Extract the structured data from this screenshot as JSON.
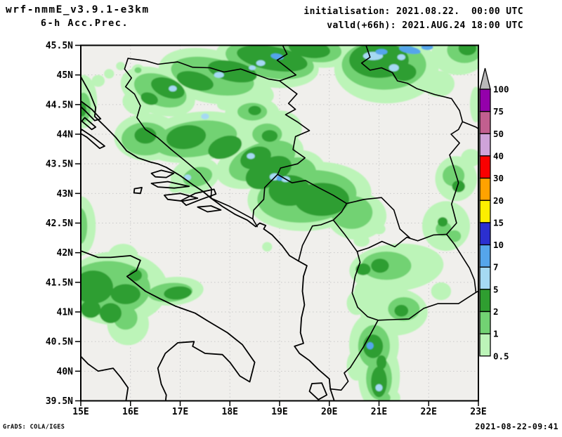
{
  "header": {
    "model": "wrf-nmmE_v3.9.1-e3km",
    "product": "6-h Acc.Prec.",
    "initialisation": "initialisation: 2021.08.22.  00:00 UTC",
    "valid": "valld(+66h): 2021.AUG.24 18:00 UTC"
  },
  "footer": {
    "credit": "GrADS: COLA/IGES",
    "timestamp": "2021-08-22-09:41"
  },
  "map": {
    "background": "#f0efec",
    "grid_color": "#c9c9c9",
    "lat_ticks": [
      {
        "label": "45.5N",
        "value": 45.5
      },
      {
        "label": "45N",
        "value": 45
      },
      {
        "label": "44.5N",
        "value": 44.5
      },
      {
        "label": "44N",
        "value": 44
      },
      {
        "label": "43.5N",
        "value": 43.5
      },
      {
        "label": "43N",
        "value": 43
      },
      {
        "label": "42.5N",
        "value": 42.5
      },
      {
        "label": "42N",
        "value": 42
      },
      {
        "label": "41.5N",
        "value": 41.5
      },
      {
        "label": "41N",
        "value": 41
      },
      {
        "label": "40.5N",
        "value": 40.5
      },
      {
        "label": "40N",
        "value": 40
      },
      {
        "label": "39.5N",
        "value": 39.5
      }
    ],
    "lon_ticks": [
      {
        "label": "15E",
        "value": 15
      },
      {
        "label": "16E",
        "value": 16
      },
      {
        "label": "17E",
        "value": 17
      },
      {
        "label": "18E",
        "value": 18
      },
      {
        "label": "19E",
        "value": 19
      },
      {
        "label": "20E",
        "value": 20
      },
      {
        "label": "21E",
        "value": 21
      },
      {
        "label": "22E",
        "value": 22
      },
      {
        "label": "23E",
        "value": 23
      }
    ]
  },
  "colorbar": {
    "over_color": "#b9b9b9",
    "labels": [
      "100",
      "75",
      "50",
      "40",
      "30",
      "20",
      "15",
      "10",
      "7",
      "5",
      "2",
      "1",
      "0.5"
    ],
    "colors": [
      "#9400ab",
      "#c25f8f",
      "#cfa3d9",
      "#fa0000",
      "#ffa200",
      "#fcee00",
      "#2b2fd0",
      "#55a5eb",
      "#a5d9f3",
      "#2f9e30",
      "#72d273",
      "#bcf4b8"
    ]
  },
  "precip": {
    "cells": [
      [
        16.55,
        44.72,
        0.78,
        0.38,
        20,
        0.5
      ],
      [
        17.6,
        44.98,
        1.05,
        0.45,
        12,
        0.5
      ],
      [
        18.75,
        45.22,
        1.05,
        0.42,
        10,
        0.5
      ],
      [
        19.75,
        45.45,
        0.75,
        0.32,
        8,
        0.5
      ],
      [
        18.3,
        44.75,
        0.6,
        0.25,
        15,
        0.5
      ],
      [
        16.15,
        44.52,
        0.32,
        0.2,
        20,
        0.5
      ],
      [
        16.6,
        44.74,
        0.55,
        0.26,
        20,
        1
      ],
      [
        17.65,
        44.98,
        0.85,
        0.3,
        12,
        1
      ],
      [
        18.8,
        45.25,
        0.9,
        0.3,
        10,
        1
      ],
      [
        19.7,
        45.44,
        0.55,
        0.22,
        8,
        1
      ],
      [
        16.75,
        44.78,
        0.35,
        0.16,
        20,
        2
      ],
      [
        17.3,
        44.9,
        0.38,
        0.15,
        15,
        2
      ],
      [
        18.05,
        45.06,
        0.5,
        0.17,
        12,
        2
      ],
      [
        18.85,
        45.28,
        0.72,
        0.2,
        10,
        2
      ],
      [
        19.6,
        45.44,
        0.42,
        0.15,
        8,
        2
      ],
      [
        16.38,
        44.6,
        0.18,
        0.1,
        20,
        2
      ],
      [
        16.85,
        44.77,
        0.08,
        0.05,
        0,
        5
      ],
      [
        17.78,
        45.0,
        0.1,
        0.05,
        0,
        5
      ],
      [
        18.62,
        45.2,
        0.09,
        0.05,
        0,
        5
      ],
      [
        18.95,
        45.31,
        0.13,
        0.05,
        10,
        7
      ],
      [
        18.45,
        45.12,
        0.07,
        0.04,
        0,
        5
      ],
      [
        21.15,
        45.1,
        1.05,
        0.58,
        0,
        0.5
      ],
      [
        22.6,
        45.35,
        0.55,
        0.35,
        0,
        0.5
      ],
      [
        22.2,
        44.85,
        0.32,
        0.22,
        0,
        0.5
      ],
      [
        22.95,
        44.5,
        0.12,
        0.3,
        0,
        0.5
      ],
      [
        21.1,
        45.17,
        0.85,
        0.42,
        0,
        1
      ],
      [
        22.72,
        45.42,
        0.35,
        0.22,
        0,
        1
      ],
      [
        21.0,
        45.25,
        0.6,
        0.3,
        0,
        2
      ],
      [
        21.5,
        45.05,
        0.25,
        0.15,
        0,
        2
      ],
      [
        22.78,
        45.45,
        0.18,
        0.12,
        0,
        2
      ],
      [
        20.88,
        45.32,
        0.2,
        0.07,
        0,
        5
      ],
      [
        21.3,
        45.12,
        0.1,
        0.06,
        0,
        5
      ],
      [
        21.45,
        45.3,
        0.08,
        0.05,
        0,
        5
      ],
      [
        21.62,
        45.42,
        0.22,
        0.06,
        10,
        7
      ],
      [
        21.05,
        45.39,
        0.12,
        0.05,
        0,
        7
      ],
      [
        21.97,
        45.47,
        0.12,
        0.05,
        0,
        7
      ],
      [
        18.45,
        44.35,
        0.55,
        0.28,
        0,
        0.5
      ],
      [
        19.0,
        44.1,
        0.45,
        0.3,
        0,
        0.5
      ],
      [
        18.25,
        43.95,
        0.5,
        0.3,
        0,
        0.5
      ],
      [
        17.9,
        44.5,
        0.16,
        0.1,
        0,
        0.5
      ],
      [
        18.45,
        44.38,
        0.3,
        0.15,
        0,
        1
      ],
      [
        18.75,
        44.0,
        0.3,
        0.18,
        0,
        1
      ],
      [
        18.5,
        44.4,
        0.13,
        0.08,
        0,
        2
      ],
      [
        18.8,
        43.97,
        0.16,
        0.1,
        0,
        2
      ],
      [
        17.3,
        43.95,
        1.1,
        0.42,
        -8,
        0.5
      ],
      [
        18.6,
        43.55,
        0.92,
        0.42,
        -20,
        0.5
      ],
      [
        16.35,
        43.95,
        0.68,
        0.4,
        0,
        0.5
      ],
      [
        19.35,
        43.3,
        0.6,
        0.42,
        -20,
        0.5
      ],
      [
        17.3,
        43.92,
        0.85,
        0.3,
        -8,
        1
      ],
      [
        18.65,
        43.55,
        0.7,
        0.3,
        -20,
        1
      ],
      [
        16.3,
        43.92,
        0.48,
        0.28,
        0,
        1
      ],
      [
        19.3,
        43.3,
        0.45,
        0.3,
        -20,
        1
      ],
      [
        17.12,
        43.95,
        0.4,
        0.2,
        -8,
        2
      ],
      [
        17.9,
        43.78,
        0.35,
        0.18,
        -20,
        2
      ],
      [
        18.52,
        43.6,
        0.32,
        0.18,
        -20,
        2
      ],
      [
        18.9,
        43.42,
        0.35,
        0.2,
        -20,
        2
      ],
      [
        16.3,
        43.98,
        0.22,
        0.14,
        0,
        2
      ],
      [
        17.5,
        44.3,
        0.08,
        0.05,
        0,
        5
      ],
      [
        18.42,
        43.63,
        0.08,
        0.05,
        0,
        5
      ],
      [
        17.3,
        43.3,
        0.5,
        0.3,
        -15,
        0.5
      ],
      [
        16.9,
        43.1,
        0.13,
        0.09,
        0,
        0.5
      ],
      [
        17.35,
        43.28,
        0.3,
        0.16,
        -15,
        1
      ],
      [
        17.15,
        43.27,
        0.07,
        0.05,
        0,
        5
      ],
      [
        19.6,
        42.95,
        1.25,
        0.58,
        -5,
        0.5
      ],
      [
        20.55,
        42.62,
        0.6,
        0.4,
        0,
        0.5
      ],
      [
        20.65,
        42.2,
        0.16,
        0.1,
        0,
        0.5
      ],
      [
        21.0,
        42.4,
        0.13,
        0.09,
        0,
        0.5
      ],
      [
        19.55,
        42.95,
        1.0,
        0.44,
        -5,
        1
      ],
      [
        20.45,
        42.68,
        0.42,
        0.28,
        0,
        1
      ],
      [
        19.2,
        43.05,
        0.42,
        0.26,
        0,
        2
      ],
      [
        19.85,
        42.9,
        0.55,
        0.28,
        0,
        2
      ],
      [
        18.66,
        43.3,
        0.35,
        0.22,
        -20,
        2
      ],
      [
        18.9,
        43.28,
        0.1,
        0.06,
        0,
        5
      ],
      [
        19.12,
        43.24,
        0.09,
        0.05,
        0,
        5
      ],
      [
        19.0,
        43.26,
        0.06,
        0.045,
        0,
        7
      ],
      [
        22.55,
        43.25,
        0.42,
        0.38,
        0,
        0.5
      ],
      [
        22.85,
        43.6,
        0.2,
        0.15,
        0,
        0.5
      ],
      [
        22.5,
        43.3,
        0.22,
        0.18,
        0,
        1
      ],
      [
        22.6,
        43.12,
        0.13,
        0.1,
        0,
        2
      ],
      [
        22.35,
        42.45,
        0.48,
        0.42,
        0,
        0.5
      ],
      [
        22.3,
        42.4,
        0.16,
        0.12,
        0,
        1
      ],
      [
        22.52,
        42.28,
        0.13,
        0.1,
        0,
        1
      ],
      [
        22.28,
        42.52,
        0.1,
        0.08,
        0,
        2
      ],
      [
        21.35,
        41.75,
        0.95,
        0.4,
        -5,
        0.5
      ],
      [
        21.3,
        41.0,
        0.68,
        0.4,
        0,
        0.5
      ],
      [
        22.25,
        41.35,
        0.2,
        0.15,
        0,
        0.5
      ],
      [
        20.75,
        41.35,
        0.25,
        0.2,
        0,
        0.5
      ],
      [
        21.15,
        41.78,
        0.5,
        0.24,
        0,
        1
      ],
      [
        21.5,
        41.05,
        0.32,
        0.2,
        0,
        1
      ],
      [
        20.68,
        41.72,
        0.15,
        0.1,
        0,
        2
      ],
      [
        21.02,
        41.78,
        0.18,
        0.12,
        0,
        2
      ],
      [
        21.45,
        41.02,
        0.14,
        0.1,
        0,
        2
      ],
      [
        20.9,
        40.45,
        0.5,
        0.55,
        0,
        0.5
      ],
      [
        21.0,
        39.92,
        0.42,
        0.6,
        0,
        0.5
      ],
      [
        20.55,
        40.1,
        0.2,
        0.26,
        0,
        0.5
      ],
      [
        20.55,
        41.15,
        0.2,
        0.2,
        0,
        0.5
      ],
      [
        21.15,
        39.55,
        0.28,
        0.16,
        0,
        0.5
      ],
      [
        20.9,
        40.42,
        0.32,
        0.36,
        0,
        1
      ],
      [
        21.0,
        39.88,
        0.26,
        0.36,
        0,
        1
      ],
      [
        21.1,
        39.55,
        0.13,
        0.09,
        0,
        1
      ],
      [
        20.88,
        40.42,
        0.2,
        0.2,
        0,
        2
      ],
      [
        21.0,
        39.82,
        0.16,
        0.26,
        0,
        2
      ],
      [
        21.05,
        40.15,
        0.1,
        0.12,
        0,
        2
      ],
      [
        20.82,
        40.43,
        0.07,
        0.06,
        0,
        7
      ],
      [
        21.0,
        39.72,
        0.07,
        0.06,
        0,
        5
      ],
      [
        15.7,
        41.4,
        1.05,
        0.62,
        0,
        0.5
      ],
      [
        16.85,
        41.35,
        0.62,
        0.24,
        -5,
        0.5
      ],
      [
        15.95,
        40.8,
        0.42,
        0.36,
        0,
        0.5
      ],
      [
        15.85,
        41.95,
        0.3,
        0.2,
        0,
        0.5
      ],
      [
        15.0,
        42.45,
        0.3,
        0.5,
        0,
        0.5
      ],
      [
        15.55,
        41.4,
        0.85,
        0.46,
        0,
        1
      ],
      [
        16.8,
        41.33,
        0.45,
        0.16,
        -5,
        1
      ],
      [
        16.15,
        41.6,
        0.2,
        0.15,
        0,
        1
      ],
      [
        15.9,
        40.9,
        0.24,
        0.2,
        0,
        1
      ],
      [
        15.0,
        42.45,
        0.13,
        0.3,
        0,
        1
      ],
      [
        15.25,
        41.42,
        0.4,
        0.28,
        0,
        2
      ],
      [
        15.9,
        41.3,
        0.3,
        0.17,
        0,
        2
      ],
      [
        16.95,
        41.32,
        0.28,
        0.11,
        -5,
        2
      ],
      [
        15.6,
        40.98,
        0.22,
        0.17,
        0,
        2
      ],
      [
        16.1,
        41.62,
        0.13,
        0.1,
        0,
        2
      ],
      [
        15.2,
        41.05,
        0.2,
        0.15,
        0,
        2
      ],
      [
        15.05,
        44.55,
        0.28,
        0.45,
        0,
        0.5
      ],
      [
        15.35,
        44.9,
        0.13,
        0.1,
        0,
        0.5
      ],
      [
        15.57,
        45.02,
        0.1,
        0.08,
        0,
        0.5
      ],
      [
        16.15,
        45.08,
        0.13,
        0.1,
        0,
        0.5
      ],
      [
        15.8,
        45.15,
        0.09,
        0.07,
        0,
        0.5
      ],
      [
        15.05,
        44.45,
        0.15,
        0.25,
        0,
        1
      ],
      [
        16.15,
        45.08,
        0.07,
        0.05,
        0,
        1
      ],
      [
        15.03,
        44.42,
        0.08,
        0.12,
        0,
        2
      ],
      [
        18.75,
        42.1,
        0.1,
        0.08,
        0,
        0.5
      ]
    ]
  }
}
